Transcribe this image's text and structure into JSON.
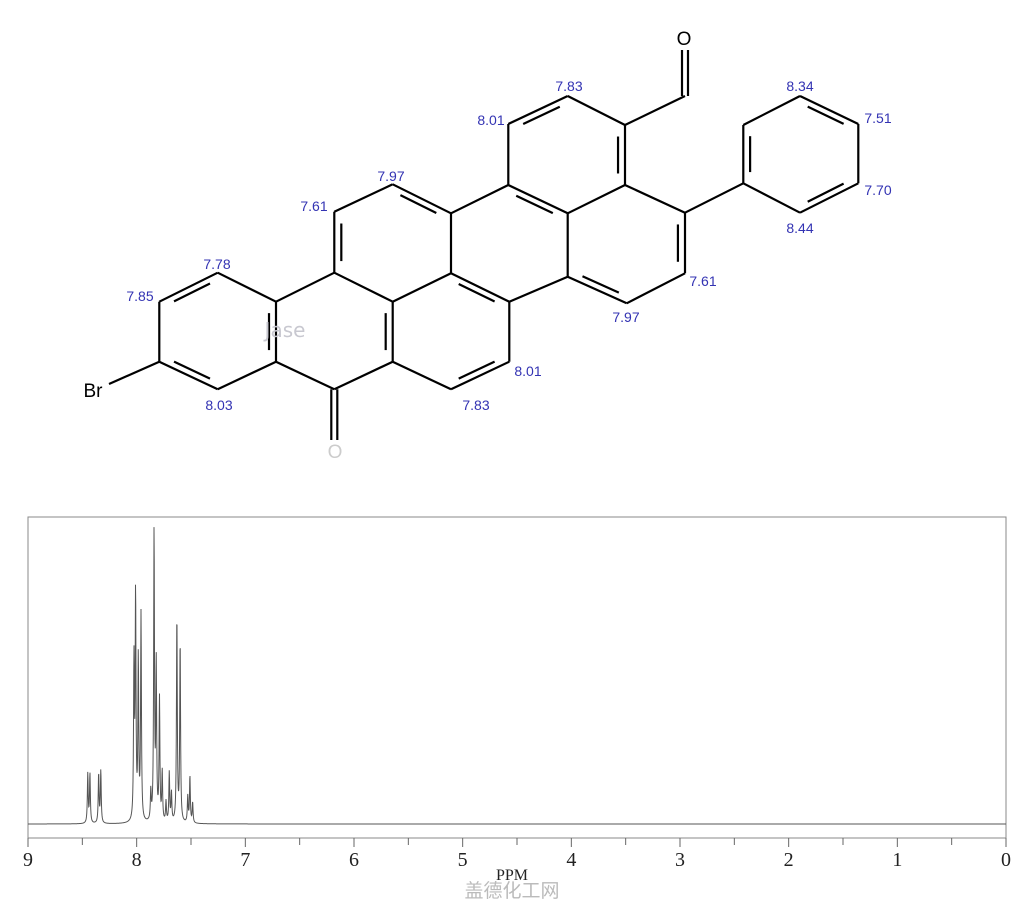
{
  "molecule": {
    "atoms": {
      "bromine": "Br",
      "oxygen_top": "O",
      "oxygen_bottom": "O"
    },
    "shift_labels": [
      "7.83",
      "8.01",
      "7.97",
      "7.61",
      "7.78",
      "7.85",
      "8.03",
      "7.83",
      "8.01",
      "7.97",
      "7.61",
      "8.44",
      "7.70",
      "7.51",
      "8.34"
    ],
    "label_color": "#3333b3",
    "watermark": "Jase"
  },
  "chart_data": {
    "type": "line",
    "subtype": "1H NMR spectrum",
    "xlabel": "PPM",
    "xlim": [
      9,
      0
    ],
    "x_reversed": true,
    "x_ticks": [
      "9",
      "8",
      "7",
      "6",
      "5",
      "4",
      "3",
      "2",
      "1",
      "0"
    ],
    "minor_ticks_step": 0.5,
    "grid": false,
    "y_axis_shown": false,
    "line_color": "#555555",
    "peaks": [
      {
        "ppm": 8.45,
        "intensity": 17
      },
      {
        "ppm": 8.43,
        "intensity": 17
      },
      {
        "ppm": 8.35,
        "intensity": 17
      },
      {
        "ppm": 8.33,
        "intensity": 18
      },
      {
        "ppm": 8.025,
        "intensity": 54
      },
      {
        "ppm": 8.01,
        "intensity": 77
      },
      {
        "ppm": 7.985,
        "intensity": 55
      },
      {
        "ppm": 7.96,
        "intensity": 71
      },
      {
        "ppm": 7.87,
        "intensity": 10
      },
      {
        "ppm": 7.84,
        "intensity": 100
      },
      {
        "ppm": 7.82,
        "intensity": 53
      },
      {
        "ppm": 7.79,
        "intensity": 42
      },
      {
        "ppm": 7.765,
        "intensity": 17
      },
      {
        "ppm": 7.73,
        "intensity": 7
      },
      {
        "ppm": 7.7,
        "intensity": 17
      },
      {
        "ppm": 7.68,
        "intensity": 10
      },
      {
        "ppm": 7.63,
        "intensity": 71
      },
      {
        "ppm": 7.6,
        "intensity": 62
      },
      {
        "ppm": 7.53,
        "intensity": 9
      },
      {
        "ppm": 7.51,
        "intensity": 16
      },
      {
        "ppm": 7.485,
        "intensity": 7
      }
    ],
    "watermark": "盖德化工网"
  }
}
